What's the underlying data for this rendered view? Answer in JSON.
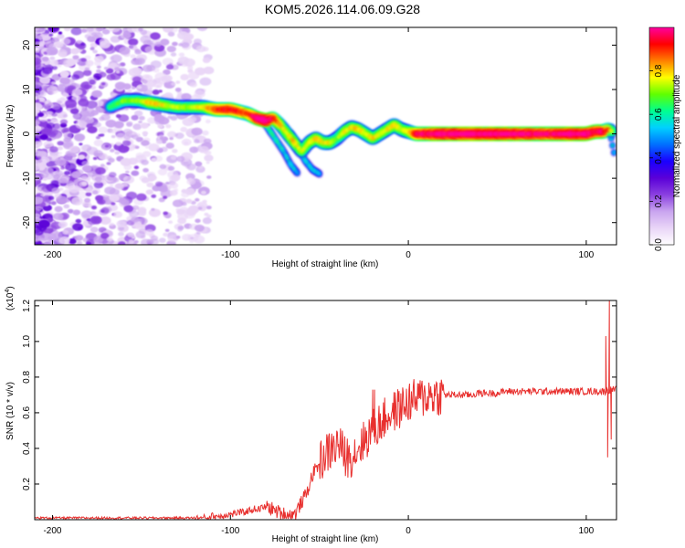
{
  "page": {
    "title": "KOM5.2026.114.06.09.G28"
  },
  "colors": {
    "snr_line": "#e8302e",
    "axis": "#000000",
    "colormap": [
      "#ffffff",
      "#e9d5f7",
      "#c9a4ef",
      "#8a3fe0",
      "#5a00d8",
      "#1a00ff",
      "#0070ff",
      "#00d0ff",
      "#00ff90",
      "#60ff00",
      "#ffff00",
      "#ff8000",
      "#ff0000",
      "#ff00a0"
    ]
  },
  "chart_data": [
    {
      "type": "heatmap",
      "title": "KOM5.2026.114.06.09.G28",
      "xlabel": "Height of straight line (km)",
      "ylabel": "Frequency (Hz)",
      "xlim": [
        -210,
        117
      ],
      "ylim": [
        -25,
        24
      ],
      "xticks": [
        -200,
        -100,
        0,
        100
      ],
      "xtick_labels": [
        "-200",
        "-100",
        "0",
        "100"
      ],
      "yticks": [
        20,
        10,
        0,
        -10,
        -20
      ],
      "ytick_labels": [
        "20",
        "10",
        "0",
        "-10",
        "-20"
      ],
      "colorbar": {
        "label": "Normalized spectral amplitude",
        "range": [
          0,
          1
        ],
        "ticks": [
          0.0,
          0.2,
          0.4,
          0.6,
          0.8
        ],
        "tick_labels": [
          "0.0",
          "0.2",
          "0.4",
          "0.6",
          "0.8"
        ]
      },
      "noise_region_x": [
        -210,
        -112
      ],
      "ridge": {
        "x": [
          -168,
          -160,
          -152,
          -145,
          -138,
          -130,
          -122,
          -115,
          -108,
          -100,
          -95,
          -90,
          -85,
          -80,
          -76,
          -72,
          -68,
          -64,
          -60,
          -56,
          -52,
          -48,
          -44,
          -40,
          -36,
          -32,
          -28,
          -24,
          -20,
          -16,
          -12,
          -8,
          -4,
          0,
          4,
          8,
          20,
          40,
          60,
          80,
          90,
          100,
          105,
          110,
          112,
          115
        ],
        "freq": [
          6,
          7.5,
          7.5,
          7,
          6.5,
          6,
          6,
          6,
          5.5,
          5.5,
          5,
          4.5,
          3.5,
          3,
          3.5,
          2,
          0,
          -2,
          -4,
          -2,
          -1,
          -2,
          -2,
          -1,
          0.5,
          1.5,
          1,
          0,
          -1,
          0,
          1,
          2,
          1,
          0.5,
          0,
          0,
          0,
          0,
          0,
          0,
          0,
          0,
          0.5,
          0.5,
          1,
          0.5
        ],
        "amplitude": [
          0.35,
          0.45,
          0.45,
          0.6,
          0.55,
          0.5,
          0.5,
          0.55,
          0.75,
          0.8,
          0.75,
          0.7,
          0.9,
          0.95,
          0.8,
          0.6,
          0.55,
          0.6,
          0.5,
          0.55,
          0.6,
          0.55,
          0.55,
          0.45,
          0.6,
          0.55,
          0.6,
          0.55,
          0.6,
          0.55,
          0.55,
          0.6,
          0.55,
          0.55,
          0.8,
          0.85,
          0.9,
          0.9,
          0.9,
          0.85,
          0.9,
          0.9,
          0.85,
          0.85,
          0.7,
          0.45
        ]
      },
      "ridge_branches": [
        {
          "x": [
            -80,
            -75,
            -70,
            -66,
            -62
          ],
          "freq": [
            2,
            -1,
            -4,
            -7,
            -9
          ],
          "amplitude": [
            0.4,
            0.35,
            0.3,
            0.3,
            0.25
          ]
        },
        {
          "x": [
            -66,
            -62,
            -58,
            -54,
            -50
          ],
          "freq": [
            0,
            -3,
            -6,
            -8,
            -9
          ],
          "amplitude": [
            0.35,
            0.35,
            0.3,
            0.3,
            0.25
          ]
        },
        {
          "x": [
            114,
            115,
            116
          ],
          "freq": [
            -1,
            -3,
            -5
          ],
          "amplitude": [
            0.35,
            0.3,
            0.25
          ]
        }
      ]
    },
    {
      "type": "line",
      "xlabel": "Height of straight line (km)",
      "ylabel": "SNR (10 * v/v)",
      "scale_label": "(x10",
      "scale_exponent": "4",
      "scale_close": ")",
      "xlim": [
        -210,
        117
      ],
      "ylim": [
        0,
        1.23
      ],
      "xticks": [
        -200,
        -100,
        0,
        100
      ],
      "xtick_labels": [
        "-200",
        "-100",
        "0",
        "100"
      ],
      "yticks": [
        0.2,
        0.4,
        0.6,
        0.8,
        1.0,
        1.2
      ],
      "ytick_labels": [
        "0.2",
        "0.4",
        "0.6",
        "0.8",
        "1.0",
        "1.2"
      ],
      "series": [
        {
          "name": "SNR",
          "x_start": -210,
          "x_step": 3,
          "values": [
            0.01,
            0.01,
            0.01,
            0.01,
            0.01,
            0.01,
            0.01,
            0.01,
            0.01,
            0.01,
            0.01,
            0.01,
            0.01,
            0.01,
            0.01,
            0.01,
            0.01,
            0.01,
            0.01,
            0.01,
            0.01,
            0.01,
            0.01,
            0.01,
            0.01,
            0.01,
            0.01,
            0.01,
            0.01,
            0.01,
            0.01,
            0.01,
            0.01,
            0.02,
            0.02,
            0.02,
            0.03,
            0.03,
            0.04,
            0.04,
            0.05,
            0.06,
            0.06,
            0.07,
            0.07,
            0.05,
            0.04,
            0.03,
            0.02,
            0.04,
            0.1,
            0.15,
            0.25,
            0.3,
            0.35,
            0.38,
            0.4,
            0.43,
            0.36,
            0.35,
            0.38,
            0.42,
            0.45,
            0.5,
            0.52,
            0.55,
            0.58,
            0.6,
            0.62,
            0.64,
            0.66,
            0.67,
            0.68,
            0.69,
            0.7,
            0.7,
            0.7,
            0.7,
            0.7,
            0.7,
            0.7,
            0.7,
            0.7,
            0.71,
            0.71,
            0.71,
            0.71,
            0.71,
            0.72,
            0.72,
            0.72,
            0.72,
            0.72,
            0.72,
            0.72,
            0.72,
            0.72,
            0.72,
            0.72,
            0.72,
            0.72,
            0.72,
            0.72,
            0.72,
            0.72,
            0.72,
            0.72,
            0.72,
            0.73,
            0.73
          ],
          "spikes": [
            {
              "x": -20,
              "value": 0.73
            },
            {
              "x": -19,
              "value": 0.73
            },
            {
              "x": 111,
              "value": 1.03
            },
            {
              "x": 112,
              "value": 0.35
            },
            {
              "x": 113,
              "value": 1.23
            },
            {
              "x": 114,
              "value": 0.45
            }
          ]
        }
      ]
    }
  ]
}
